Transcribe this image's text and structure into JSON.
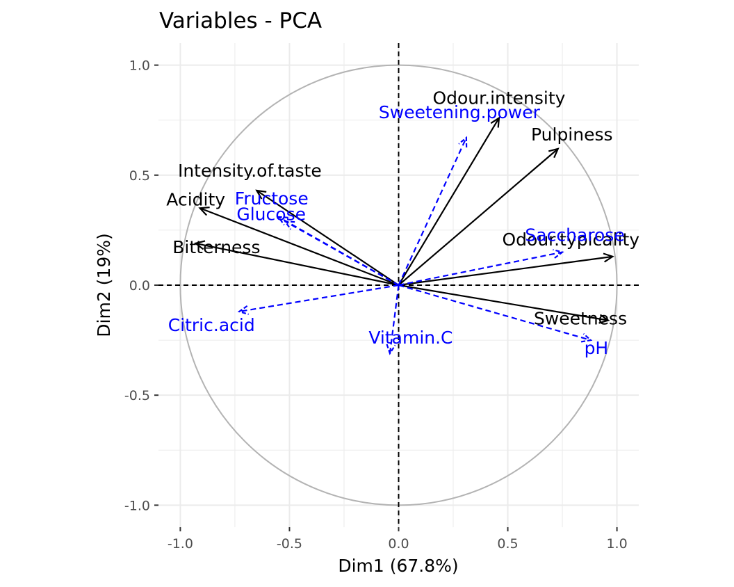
{
  "chart_data": {
    "type": "scatter",
    "title": "Variables - PCA",
    "xlabel": "Dim1 (67.8%)",
    "ylabel": "Dim2 (19%)",
    "xlim": [
      -1.1,
      1.1
    ],
    "ylim": [
      -1.1,
      1.1
    ],
    "x_ticks": [
      "-1.0",
      "-0.5",
      "0.0",
      "0.5",
      "1.0"
    ],
    "y_ticks": [
      "-1.0",
      "-0.5",
      "0.0",
      "0.5",
      "1.0"
    ],
    "grid": true,
    "correlation_circle": true,
    "colors": {
      "active": "#000000",
      "supplementary": "#0000ff",
      "circle": "#b3b3b3",
      "grid": "#ebebeb"
    },
    "active_variables": [
      {
        "name": "Odour.intensity",
        "x": 0.46,
        "y": 0.76
      },
      {
        "name": "Pulpiness",
        "x": 0.73,
        "y": 0.62
      },
      {
        "name": "Intensity.of.taste",
        "x": -0.65,
        "y": 0.43
      },
      {
        "name": "Acidity",
        "x": -0.91,
        "y": 0.35
      },
      {
        "name": "Bitterness",
        "x": -0.93,
        "y": 0.19
      },
      {
        "name": "Odour.typicality",
        "x": 0.98,
        "y": 0.13
      },
      {
        "name": "Sweetness",
        "x": 0.96,
        "y": -0.16
      }
    ],
    "supplementary_variables": [
      {
        "name": "Sweetening.power",
        "x": 0.31,
        "y": 0.67
      },
      {
        "name": "Fructose",
        "x": -0.55,
        "y": 0.31
      },
      {
        "name": "Glucose",
        "x": -0.52,
        "y": 0.29
      },
      {
        "name": "Saccharose",
        "x": 0.75,
        "y": 0.15
      },
      {
        "name": "Citric.acid",
        "x": -0.73,
        "y": -0.12
      },
      {
        "name": "Vitamin.C",
        "x": -0.04,
        "y": -0.31
      },
      {
        "name": "pH",
        "x": 0.88,
        "y": -0.25
      }
    ]
  }
}
